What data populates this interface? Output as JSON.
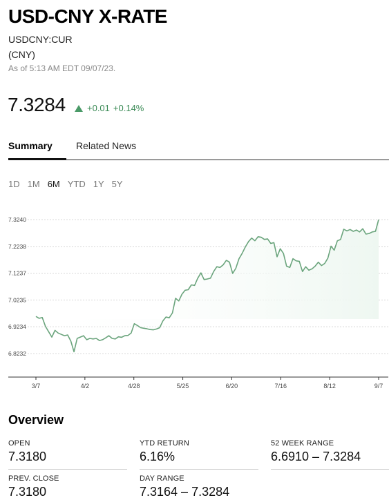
{
  "header": {
    "title": "USD-CNY X-RATE",
    "ticker": "USDCNY:CUR",
    "currency": "(CNY)",
    "as_of": "As of 5:13 AM EDT 09/07/23."
  },
  "quote": {
    "price": "7.3284",
    "change": "+0.01",
    "change_pct": "+0.14%",
    "direction": "up",
    "color_up": "#3a8a55"
  },
  "tabs": [
    {
      "label": "Summary",
      "active": true
    },
    {
      "label": "Related News",
      "active": false
    }
  ],
  "ranges": [
    {
      "label": "1D",
      "active": false
    },
    {
      "label": "1M",
      "active": false
    },
    {
      "label": "6M",
      "active": true
    },
    {
      "label": "YTD",
      "active": false
    },
    {
      "label": "1Y",
      "active": false
    },
    {
      "label": "5Y",
      "active": false
    }
  ],
  "chart_data": {
    "type": "area",
    "y_ticks": [
      "7.3240",
      "7.2238",
      "7.1237",
      "7.0235",
      "6.9234",
      "6.8232"
    ],
    "y_tick_values": [
      7.324,
      7.2238,
      7.1237,
      7.0235,
      6.9234,
      6.8232
    ],
    "x_ticks": [
      "3/7",
      "4/2",
      "4/28",
      "5/25",
      "6/20",
      "7/16",
      "8/12",
      "9/7"
    ],
    "ylim": [
      6.8232,
      7.324
    ],
    "grid": true,
    "line_color": "#6aa47c",
    "fill_color": "#eef7f1",
    "series": [
      {
        "values": [
          6.962,
          6.955,
          6.958,
          6.925,
          6.905,
          6.885,
          6.91,
          6.9,
          6.895,
          6.89,
          6.893,
          6.87,
          6.83,
          6.88,
          6.885,
          6.89,
          6.875,
          6.88,
          6.878,
          6.88,
          6.872,
          6.875,
          6.882,
          6.89,
          6.88,
          6.878,
          6.886,
          6.884,
          6.89,
          6.891,
          6.9,
          6.935,
          6.928,
          6.92,
          6.918,
          6.916,
          6.913,
          6.912,
          6.915,
          6.92,
          6.945,
          6.96,
          6.957,
          6.975,
          7.03,
          7.02,
          7.045,
          7.06,
          7.062,
          7.08,
          7.078,
          7.105,
          7.125,
          7.1,
          7.102,
          7.105,
          7.13,
          7.148,
          7.145,
          7.155,
          7.172,
          7.165,
          7.123,
          7.142,
          7.178,
          7.198,
          7.222,
          7.242,
          7.255,
          7.245,
          7.26,
          7.258,
          7.25,
          7.252,
          7.235,
          7.238,
          7.185,
          7.215,
          7.198,
          7.15,
          7.145,
          7.178,
          7.17,
          7.168,
          7.13,
          7.148,
          7.135,
          7.14,
          7.15,
          7.165,
          7.152,
          7.16,
          7.18,
          7.225,
          7.21,
          7.245,
          7.25,
          7.288,
          7.282,
          7.287,
          7.28,
          7.285,
          7.278,
          7.29,
          7.27,
          7.272,
          7.278,
          7.28,
          7.324
        ]
      }
    ]
  },
  "overview": {
    "title": "Overview",
    "stats": [
      {
        "label": "OPEN",
        "value": "7.3180"
      },
      {
        "label": "YTD RETURN",
        "value": "6.16%"
      },
      {
        "label": "52 WEEK RANGE",
        "value": "6.6910 – 7.3284"
      },
      {
        "label": "PREV. CLOSE",
        "value": "7.3180"
      },
      {
        "label": "DAY RANGE",
        "value": "7.3164 – 7.3284"
      }
    ]
  }
}
